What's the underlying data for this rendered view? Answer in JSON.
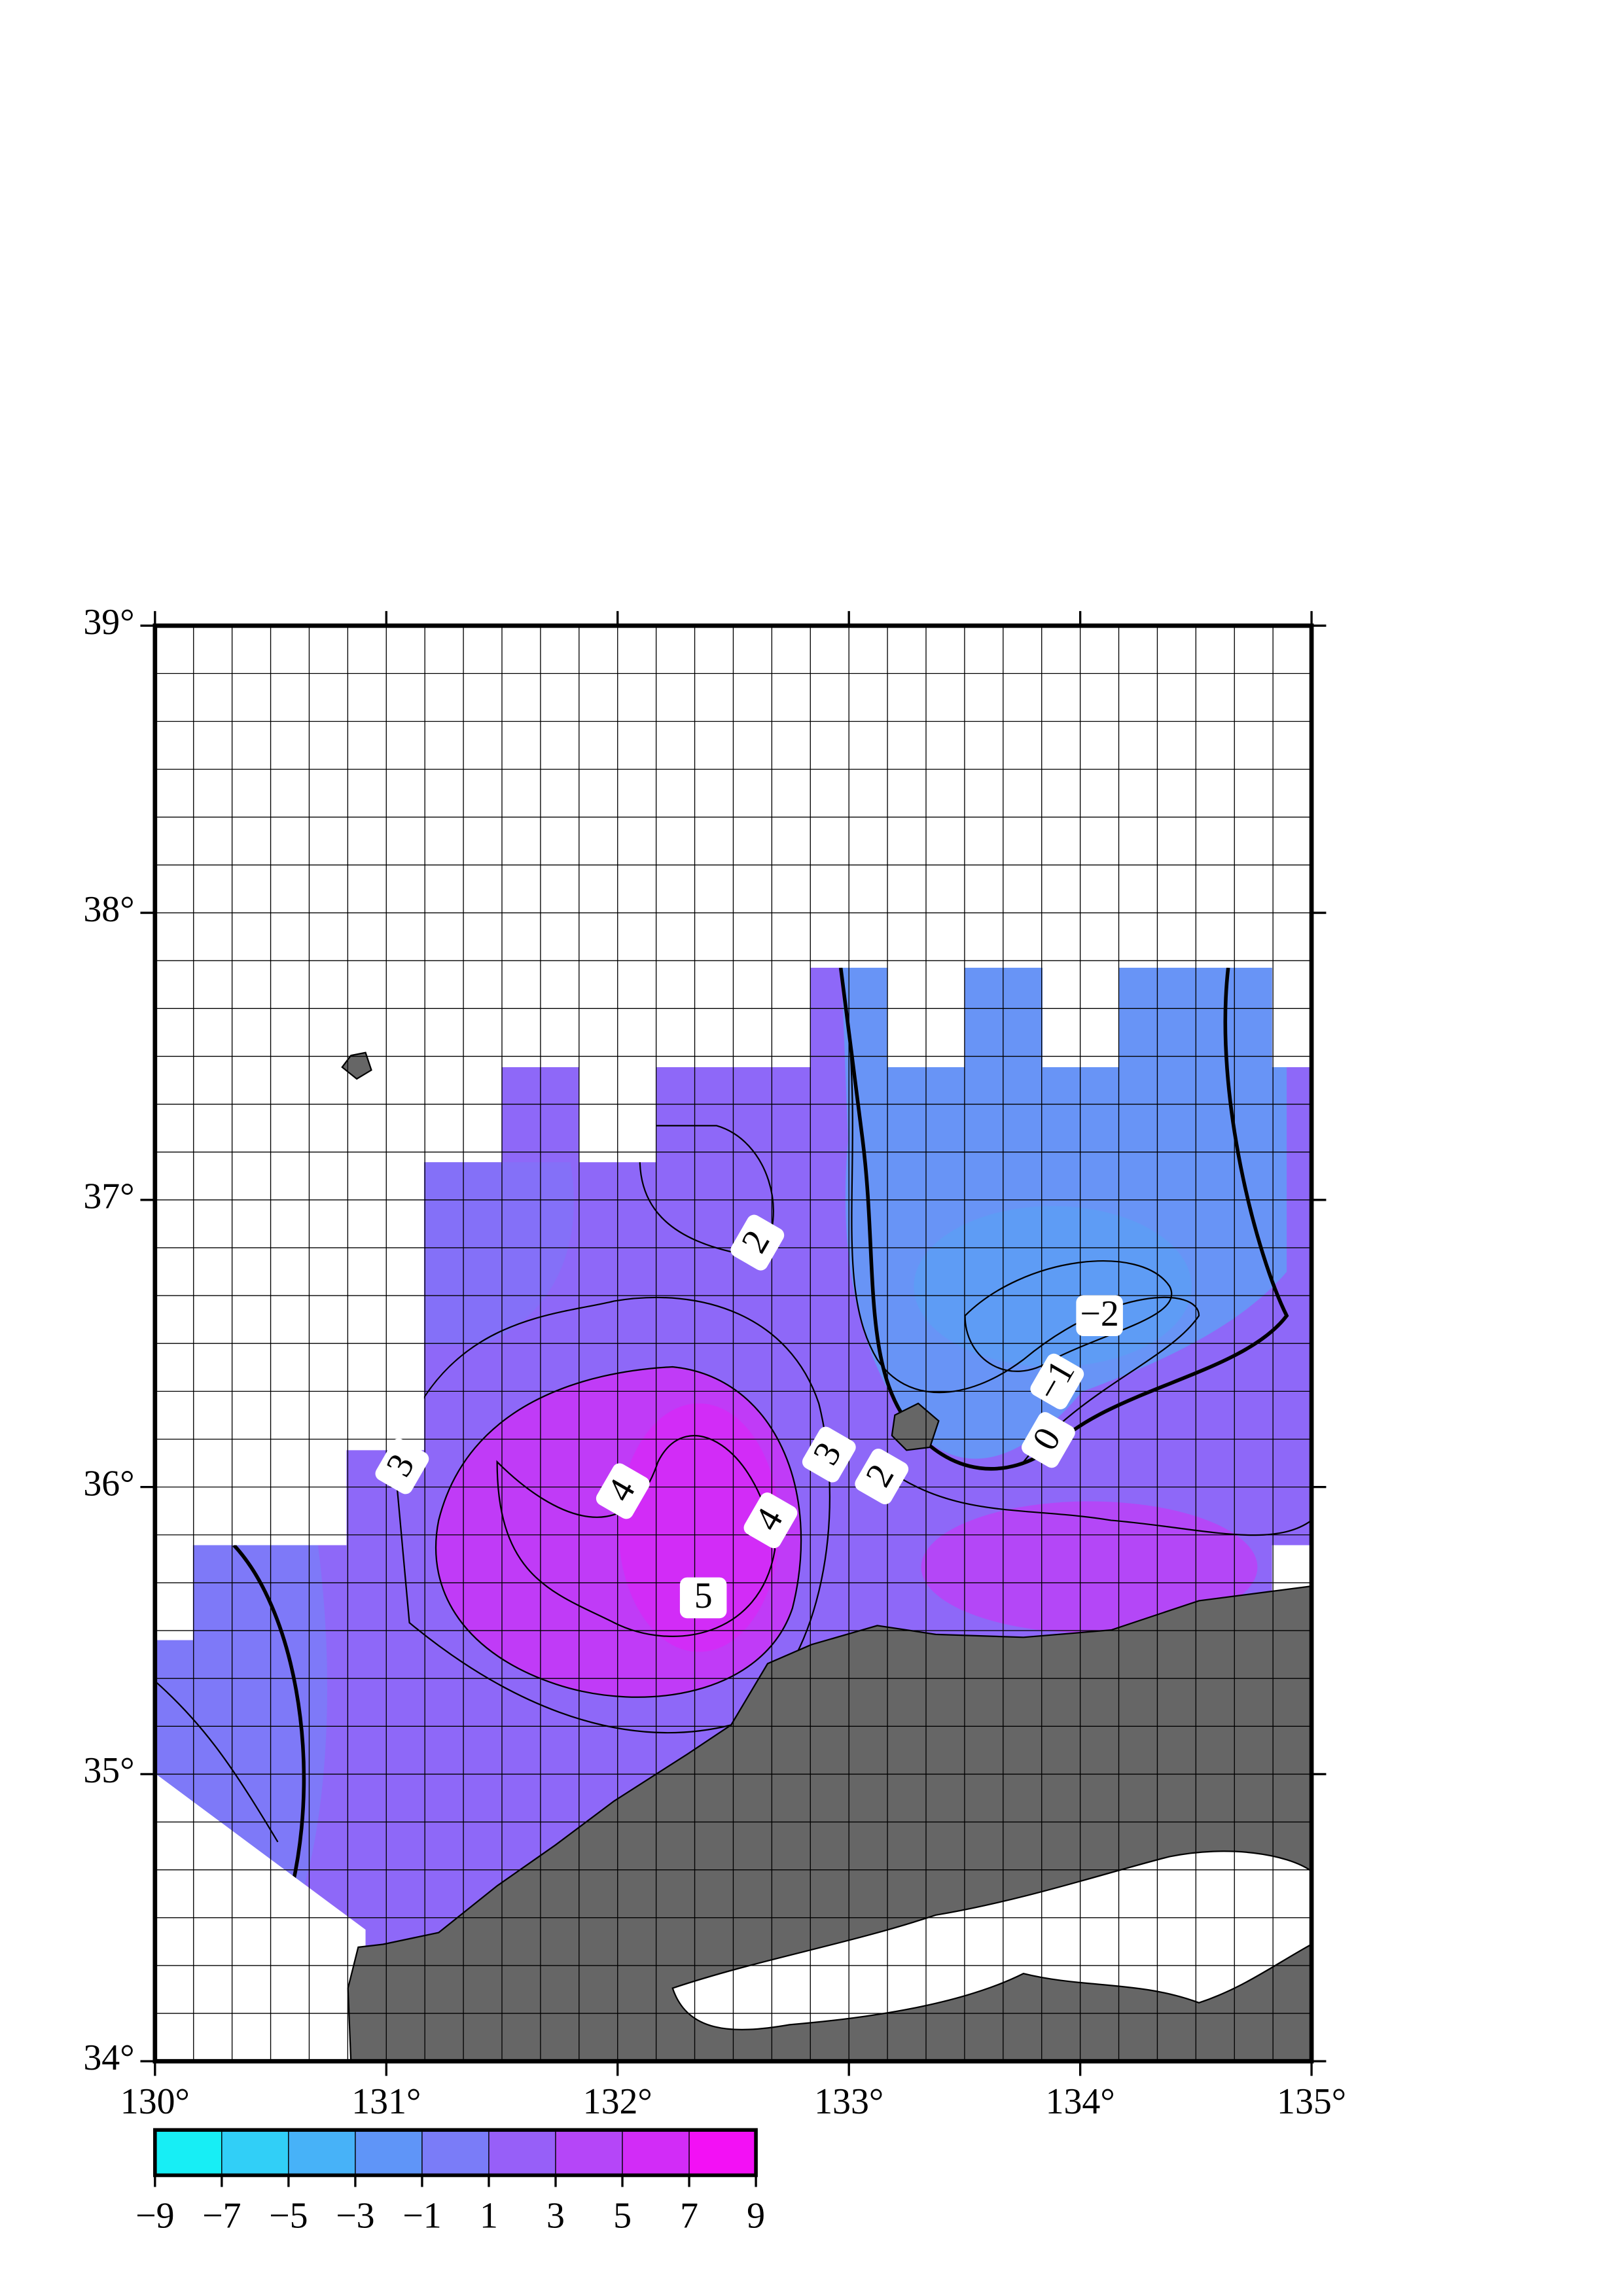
{
  "chart_data": {
    "type": "contour",
    "xlim": [
      130,
      135
    ],
    "ylim": [
      34,
      39
    ],
    "xticks": [
      {
        "value": 130,
        "label": "130°"
      },
      {
        "value": 131,
        "label": "131°"
      },
      {
        "value": 132,
        "label": "132°"
      },
      {
        "value": 133,
        "label": "133°"
      },
      {
        "value": 134,
        "label": "134°"
      },
      {
        "value": 135,
        "label": "135°"
      }
    ],
    "yticks": [
      {
        "value": 34,
        "label": "34°"
      },
      {
        "value": 35,
        "label": "35°"
      },
      {
        "value": 36,
        "label": "36°"
      },
      {
        "value": 37,
        "label": "37°"
      },
      {
        "value": 38,
        "label": "38°"
      },
      {
        "value": 39,
        "label": "39°"
      }
    ],
    "grid": true,
    "contour_labels": [
      "2",
      "−2",
      "−1",
      "0",
      "3",
      "4",
      "4",
      "5",
      "3",
      "2"
    ],
    "colorbar": {
      "ticks": [
        {
          "value": -9,
          "label": "−9"
        },
        {
          "value": -7,
          "label": "−7"
        },
        {
          "value": -5,
          "label": "−5"
        },
        {
          "value": -3,
          "label": "−3"
        },
        {
          "value": -1,
          "label": "−1"
        },
        1,
        3,
        5,
        7,
        9
      ],
      "colors": [
        "#17eef5",
        "#31cff7",
        "#47b2f8",
        "#5f95f8",
        "#7a7cf8",
        "#975ff8",
        "#b546f8",
        "#d22cf7",
        "#f310f5"
      ]
    }
  }
}
